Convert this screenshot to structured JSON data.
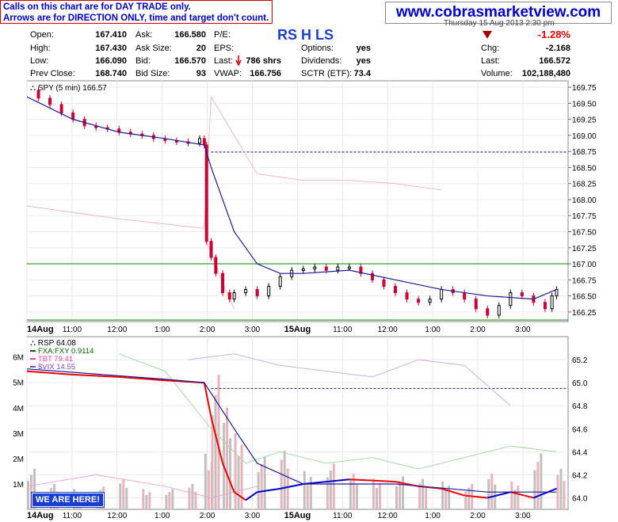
{
  "notice": {
    "line1": "Calls on this chart are for DAY TRADE only.",
    "line2": "Arrows are for DIRECTION ONLY, time and target don't count."
  },
  "website": "www.cobrasmarketview.com",
  "header_date": "Thursday 15 Aug 2013 2:30 pm",
  "ticker_annotation": "RS H LS",
  "quote": {
    "open_label": "Open:",
    "open": "167.410",
    "high_label": "High:",
    "high": "167.430",
    "low_label": "Low:",
    "low": "166.090",
    "prev_close_label": "Prev Close:",
    "prev_close": "168.740",
    "ask_label": "Ask:",
    "ask": "166.580",
    "ask_size_label": "Ask Size:",
    "ask_size": "20",
    "bid_label": "Bid:",
    "bid": "166.570",
    "bid_size_label": "Bid Size:",
    "bid_size": "93",
    "pe_label": "P/E:",
    "pe": "",
    "eps_label": "EPS:",
    "eps": "",
    "last_trade_label": "Last:",
    "last_trade": "786 shrs",
    "vwap_label": "VWAP:",
    "vwap": "166.756",
    "options_label": "Options:",
    "options": "yes",
    "dividends_label": "Dividends:",
    "dividends": "yes",
    "sctr_label": "SCTR (ETF):",
    "sctr": "73.4",
    "change_pct": "-1.28%",
    "chg_label": "Chg:",
    "chg": "-2.168",
    "last_label": "Last:",
    "last": "166.572",
    "volume_label": "Volume:",
    "volume": "102,188,480"
  },
  "colors": {
    "up": "#000000",
    "down": "#cc0033",
    "ma": "#1a1a99",
    "red_line": "#cc0000",
    "green_line": "#008800",
    "site_blue": "#0000cc"
  },
  "chart_data": [
    {
      "type": "line",
      "title": "SPY (5 min) 166.57",
      "xlabel": "",
      "ylabel": "",
      "x_tick_labels": [
        "14Aug",
        "11:00",
        "12:00",
        "1:00",
        "2:00",
        "3:00",
        "15Aug",
        "11:00",
        "12:00",
        "1:00",
        "2:00",
        "3:00"
      ],
      "y_tick_labels": [
        "169.75",
        "169.50",
        "169.25",
        "169.00",
        "168.75",
        "168.50",
        "168.25",
        "168.00",
        "167.75",
        "167.50",
        "167.25",
        "167.00",
        "166.75",
        "166.50",
        "166.25"
      ],
      "ylim": [
        166.1,
        169.85
      ],
      "grid": true,
      "reference_lines": {
        "prev_close_dashed": 168.74,
        "red_horizontal": 167.0,
        "green_horizontal": 166.1
      },
      "series": [
        {
          "name": "SPY",
          "x": [
            0,
            5,
            10,
            15,
            20,
            25,
            30,
            35,
            40,
            45,
            50,
            55,
            60,
            65,
            70,
            75,
            77,
            78,
            80,
            82,
            85,
            88,
            90,
            95,
            100,
            105,
            110,
            115,
            120,
            125,
            130,
            135,
            140,
            145,
            150,
            155,
            160,
            165,
            170,
            175,
            180,
            185,
            190,
            195,
            200,
            205,
            210,
            215,
            220,
            225,
            228,
            230
          ],
          "y": [
            169.7,
            169.58,
            169.48,
            169.35,
            169.25,
            169.15,
            169.12,
            169.1,
            169.05,
            169.02,
            169.0,
            168.95,
            168.92,
            168.9,
            168.88,
            168.95,
            168.85,
            167.35,
            167.1,
            166.85,
            166.55,
            166.45,
            166.55,
            166.6,
            166.5,
            166.65,
            166.8,
            166.9,
            166.92,
            166.95,
            166.9,
            166.95,
            166.95,
            166.85,
            166.75,
            166.65,
            166.55,
            166.45,
            166.4,
            166.45,
            166.6,
            166.55,
            166.45,
            166.3,
            166.2,
            166.35,
            166.55,
            166.5,
            166.4,
            166.3,
            166.5,
            166.6
          ]
        },
        {
          "name": "MA",
          "x": [
            0,
            20,
            40,
            60,
            77,
            80,
            90,
            100,
            110,
            120,
            140,
            160,
            180,
            200,
            220,
            230
          ],
          "y": [
            169.6,
            169.25,
            169.05,
            168.95,
            168.85,
            168.5,
            167.5,
            167.0,
            166.85,
            166.85,
            166.9,
            166.75,
            166.6,
            166.5,
            166.45,
            166.6
          ]
        }
      ]
    },
    {
      "type": "line",
      "title": "RSP 64.08",
      "legend": [
        "FXA:FXY 0.9114",
        "TBT 79.41",
        "$VIX 14.55"
      ],
      "x_tick_labels": [
        "14Aug",
        "11:00",
        "12:00",
        "1:00",
        "2:00",
        "3:00",
        "15Aug",
        "11:00",
        "12:00",
        "1:00",
        "2:00",
        "3:00"
      ],
      "y_tick_labels": [
        "65.2",
        "65.0",
        "64.8",
        "64.6",
        "64.4",
        "64.2",
        "64.0"
      ],
      "volume_tick_labels": [
        "6M",
        "5M",
        "4M",
        "3M",
        "2M",
        "1M"
      ],
      "ylim": [
        63.9,
        65.4
      ],
      "reference_lines": {
        "dashed": 64.95
      },
      "annotation": "WE ARE HERE!",
      "series": [
        {
          "name": "RSP",
          "x": [
            0,
            20,
            40,
            60,
            77,
            80,
            85,
            90,
            95,
            100,
            110,
            120,
            130,
            140,
            150,
            160,
            170,
            180,
            190,
            200,
            210,
            220,
            230
          ],
          "y": [
            65.1,
            65.07,
            65.05,
            65.02,
            65.0,
            64.7,
            64.3,
            64.05,
            63.98,
            64.05,
            64.08,
            64.12,
            64.14,
            64.16,
            64.15,
            64.14,
            64.1,
            64.08,
            64.02,
            64.0,
            64.05,
            64.0,
            64.08
          ]
        },
        {
          "name": "Volume",
          "x": [
            0,
            10,
            20,
            30,
            40,
            50,
            60,
            70,
            77,
            80,
            85,
            90,
            100,
            110,
            120,
            130,
            140,
            150,
            160,
            170,
            180,
            190,
            200,
            210,
            220,
            230
          ],
          "y": [
            1.6,
            1.0,
            0.8,
            0.9,
            1.2,
            0.8,
            0.8,
            1.0,
            2.2,
            5.3,
            4.0,
            3.0,
            2.1,
            2.3,
            1.5,
            1.8,
            1.4,
            1.2,
            1.3,
            1.2,
            1.1,
            1.0,
            1.4,
            1.1,
            2.2,
            1.6
          ]
        }
      ]
    }
  ]
}
